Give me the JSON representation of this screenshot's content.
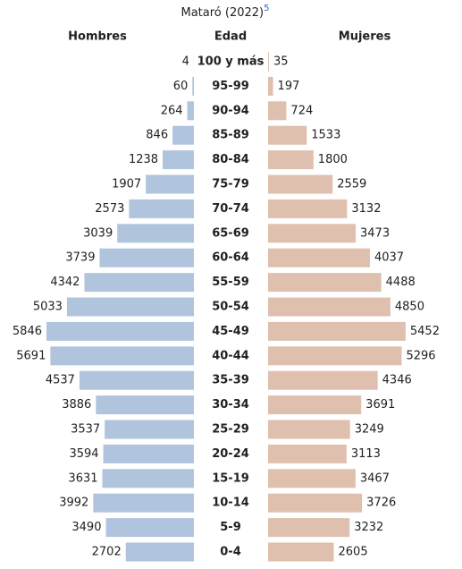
{
  "chart_data": {
    "type": "pyramid",
    "title": "Mataró (2022)",
    "title_note": "5",
    "category_label": "Edad",
    "categories": [
      "100 y más",
      "95-99",
      "90-94",
      "85-89",
      "80-84",
      "75-79",
      "70-74",
      "65-69",
      "60-64",
      "55-59",
      "50-54",
      "45-49",
      "40-44",
      "35-39",
      "30-34",
      "25-29",
      "20-24",
      "15-19",
      "10-14",
      "5-9",
      "0-4"
    ],
    "series": [
      {
        "name": "Hombres",
        "color": "#b0c4de",
        "values": [
          4,
          60,
          264,
          846,
          1238,
          1907,
          2573,
          3039,
          3739,
          4342,
          5033,
          5846,
          5691,
          4537,
          3886,
          3537,
          3594,
          3631,
          3992,
          3490,
          2702
        ]
      },
      {
        "name": "Mujeres",
        "color": "#dfc0ae",
        "values": [
          35,
          197,
          724,
          1533,
          1800,
          2559,
          3132,
          3473,
          4037,
          4488,
          4850,
          5452,
          5296,
          4346,
          3691,
          3249,
          3113,
          3467,
          3726,
          3232,
          2605
        ]
      }
    ]
  }
}
